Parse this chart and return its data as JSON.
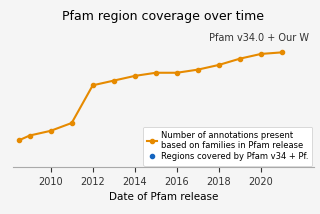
{
  "title": "Pfam region coverage over time",
  "xlabel": "Date of Pfam release",
  "annotation_text": "Pfam v34.0 + Our W",
  "orange_line": {
    "x": [
      2008.5,
      2009,
      2010,
      2011,
      2012,
      2013,
      2014,
      2015,
      2016,
      2017,
      2018,
      2019,
      2020,
      2021
    ],
    "y": [
      0.22,
      0.25,
      0.28,
      0.33,
      0.57,
      0.6,
      0.63,
      0.65,
      0.65,
      0.67,
      0.7,
      0.74,
      0.77,
      0.78
    ],
    "color": "#E68A00",
    "label1": "Number of annotations present",
    "label2": "based on families in Pfam release",
    "marker": "o",
    "markersize": 3,
    "linewidth": 1.5
  },
  "blue_point": {
    "x": [
      2020.5
    ],
    "y": [
      0.77
    ],
    "color": "#1565c0",
    "label": "Regions covered by Pfam v34 + Pf.",
    "marker": "o",
    "markersize": 3
  },
  "xlim": [
    2008.2,
    2022.5
  ],
  "ylim": [
    0.05,
    0.95
  ],
  "xticks": [
    2010,
    2012,
    2014,
    2016,
    2018,
    2020
  ],
  "background_color": "#f5f5f5",
  "title_fontsize": 9,
  "axis_fontsize": 7.5,
  "tick_fontsize": 7,
  "legend_fontsize": 6,
  "annot_fontsize": 7
}
